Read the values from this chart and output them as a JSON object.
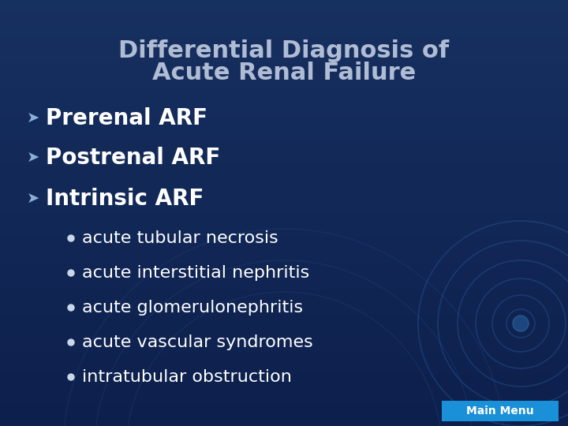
{
  "title_line1": "Differential Diagnosis of",
  "title_line2": "Acute Renal Failure",
  "title_color": "#b0bcd4",
  "title_fontsize": 22,
  "bg_color_top": "#0d1f4c",
  "bg_color_bottom": "#1a4a7a",
  "main_bullets": [
    "Prerenal ARF",
    "Postrenal ARF",
    "Intrinsic ARF"
  ],
  "main_bullet_color": "#ffffff",
  "main_bullet_fontsize": 20,
  "sub_bullets": [
    "acute tubular necrosis",
    "acute interstitial nephritis",
    "acute glomerulonephritis",
    "acute vascular syndromes",
    "intratubular obstruction"
  ],
  "sub_bullet_color": "#ffffff",
  "sub_bullet_fontsize": 16,
  "footer_text": "Main Menu",
  "footer_bg": "#1a90d8",
  "footer_text_color": "#ffffff",
  "footer_fontsize": 10,
  "arrow_color": "#8ab0d8",
  "dot_color": "#c8d8e8"
}
